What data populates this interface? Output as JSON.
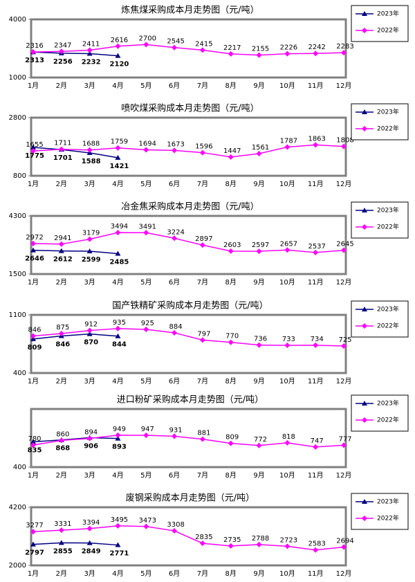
{
  "chart_data": [
    {
      "type": "line",
      "title": "炼焦煤采购成本月走势图（元/吨）",
      "categories": [
        "1月",
        "2月",
        "3月",
        "4月",
        "5月",
        "6月",
        "7月",
        "8月",
        "9月",
        "10月",
        "11月",
        "12月"
      ],
      "series": [
        {
          "name": "2023年",
          "color": "#000080",
          "marker": "triangle",
          "values": [
            2313,
            2256,
            2232,
            2120,
            null,
            null,
            null,
            null,
            null,
            null,
            null,
            null
          ]
        },
        {
          "name": "2022年",
          "color": "#ff00ff",
          "marker": "diamond",
          "values": [
            2316,
            2347,
            2411,
            2616,
            2700,
            2545,
            2415,
            2217,
            2155,
            2226,
            2242,
            2283
          ]
        }
      ],
      "ylim": [
        1000,
        4000
      ],
      "yticks": [
        1000,
        4000
      ],
      "legend": "right"
    },
    {
      "type": "line",
      "title": "喷吹煤采购成本月走势图（元/吨）",
      "categories": [
        "1月",
        "2月",
        "3月",
        "4月",
        "5月",
        "6月",
        "7月",
        "8月",
        "9月",
        "10月",
        "11月",
        "12月"
      ],
      "series": [
        {
          "name": "2023年",
          "color": "#000080",
          "marker": "triangle",
          "values": [
            1775,
            1701,
            1588,
            1421,
            null,
            null,
            null,
            null,
            null,
            null,
            null,
            null
          ]
        },
        {
          "name": "2022年",
          "color": "#ff00ff",
          "marker": "diamond",
          "values": [
            1655,
            1711,
            1688,
            1759,
            1694,
            1673,
            1596,
            1447,
            1561,
            1787,
            1863,
            1808
          ]
        }
      ],
      "ylim": [
        800,
        2800
      ],
      "yticks": [
        800,
        2800
      ],
      "legend": "right"
    },
    {
      "type": "line",
      "title": "冶金焦采购成本月走势图（元/吨）",
      "categories": [
        "1月",
        "2月",
        "3月",
        "4月",
        "5月",
        "6月",
        "7月",
        "8月",
        "9月",
        "10月",
        "11月",
        "12月"
      ],
      "series": [
        {
          "name": "2023年",
          "color": "#000080",
          "marker": "triangle",
          "values": [
            2646,
            2612,
            2599,
            2485,
            null,
            null,
            null,
            null,
            null,
            null,
            null,
            null
          ]
        },
        {
          "name": "2022年",
          "color": "#ff00ff",
          "marker": "diamond",
          "values": [
            2972,
            2941,
            3179,
            3494,
            3491,
            3224,
            2897,
            2603,
            2597,
            2657,
            2537,
            2645
          ]
        }
      ],
      "ylim": [
        1500,
        4300
      ],
      "yticks": [
        1500,
        4300
      ],
      "legend": "right"
    },
    {
      "type": "line",
      "title": "国产铁精矿采购成本月走势图（元/吨）",
      "categories": [
        "1月",
        "2月",
        "3月",
        "4月",
        "5月",
        "6月",
        "7月",
        "8月",
        "9月",
        "10月",
        "11月",
        "12月"
      ],
      "series": [
        {
          "name": "2023年",
          "color": "#000080",
          "marker": "triangle",
          "values": [
            809,
            846,
            870,
            844,
            null,
            null,
            null,
            null,
            null,
            null,
            null,
            null
          ]
        },
        {
          "name": "2022年",
          "color": "#ff00ff",
          "marker": "diamond",
          "values": [
            846,
            875,
            912,
            935,
            925,
            884,
            797,
            770,
            736,
            733,
            734,
            725
          ]
        }
      ],
      "ylim": [
        400,
        1100
      ],
      "yticks": [
        400,
        1100
      ],
      "legend": "right"
    },
    {
      "type": "line",
      "title": "进口粉矿采购成本月走势图（元/吨）",
      "categories": [
        "1月",
        "2月",
        "3月",
        "4月",
        "5月",
        "6月",
        "7月",
        "8月",
        "9月",
        "10月",
        "11月",
        "12月"
      ],
      "series": [
        {
          "name": "2023年",
          "color": "#000080",
          "marker": "triangle",
          "values": [
            835,
            868,
            906,
            893,
            null,
            null,
            null,
            null,
            null,
            null,
            null,
            null
          ]
        },
        {
          "name": "2022年",
          "color": "#ff00ff",
          "marker": "diamond",
          "values": [
            780,
            860,
            894,
            949,
            947,
            931,
            881,
            809,
            772,
            818,
            747,
            777
          ]
        }
      ],
      "ylim": [
        400,
        1400
      ],
      "yticks": [
        400
      ],
      "legend": "right"
    },
    {
      "type": "line",
      "title": "废钢采购成本月走势图（元/吨）",
      "categories": [
        "1月",
        "2月",
        "3月",
        "4月",
        "5月",
        "6月",
        "7月",
        "8月",
        "9月",
        "10月",
        "11月",
        "12月"
      ],
      "series": [
        {
          "name": "2023年",
          "color": "#000080",
          "marker": "triangle",
          "values": [
            2797,
            2855,
            2849,
            2771,
            null,
            null,
            null,
            null,
            null,
            null,
            null,
            null
          ]
        },
        {
          "name": "2022年",
          "color": "#ff00ff",
          "marker": "diamond",
          "values": [
            3277,
            3331,
            3394,
            3495,
            3473,
            3308,
            2835,
            2735,
            2788,
            2723,
            2583,
            2694
          ]
        }
      ],
      "ylim": [
        2000,
        4200
      ],
      "yticks": [
        2000,
        4200
      ],
      "legend": "right"
    }
  ]
}
